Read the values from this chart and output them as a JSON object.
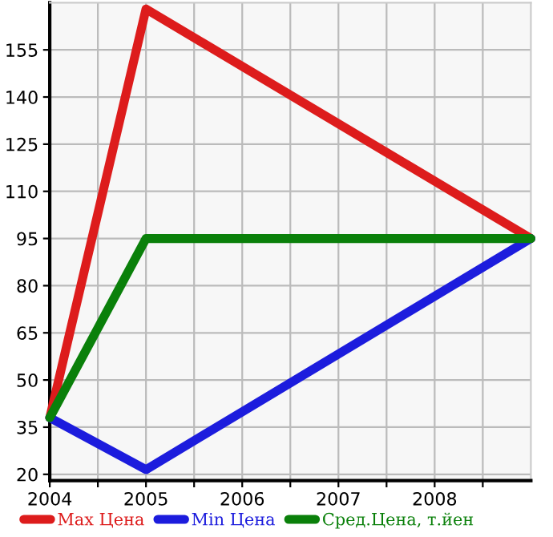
{
  "chart_data": {
    "type": "line",
    "x": [
      2004,
      2005,
      2009
    ],
    "series": [
      {
        "name": "Max Цена",
        "color": "#dd1c1c",
        "values": [
          38,
          168,
          95
        ]
      },
      {
        "name": "Min Цена",
        "color": "#1c1cdd",
        "values": [
          38,
          21.5,
          95
        ]
      },
      {
        "name": "Сред.Цена, т.йен",
        "color": "#0a800a",
        "values": [
          38,
          95,
          95
        ]
      }
    ],
    "xlim": [
      2004,
      2009
    ],
    "ylim": [
      18,
      170
    ],
    "xticks": [
      2004,
      {
        "value": 2004.5,
        "label": null
      },
      2005,
      {
        "value": 2005.5,
        "label": null
      },
      2006,
      {
        "value": 2006.5,
        "label": null
      },
      2007,
      {
        "value": 2007.5,
        "label": null
      },
      2008,
      {
        "value": 2008.5,
        "label": null
      }
    ],
    "yticks": [
      20,
      35,
      50,
      65,
      80,
      95,
      110,
      125,
      140,
      155
    ],
    "grid": true,
    "legend": "bottom",
    "marker": "none",
    "line_style": "solid"
  }
}
